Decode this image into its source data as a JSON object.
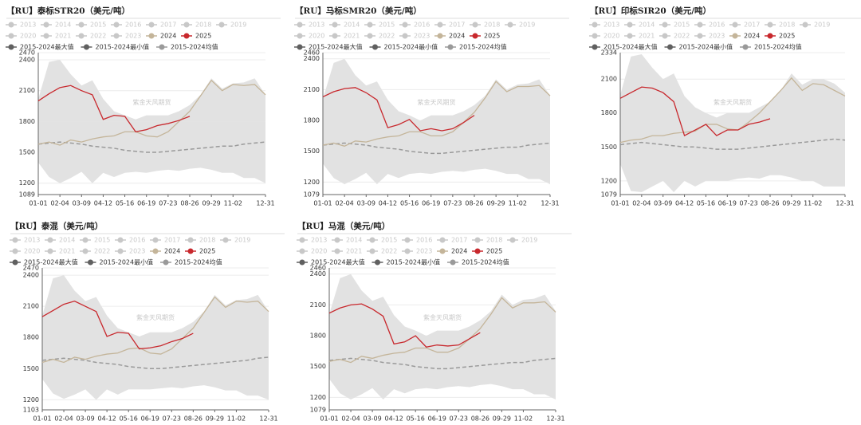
{
  "chart_data": [
    {
      "type": "line",
      "title": "【RU】泰标STR20（美元/吨）",
      "watermark": "紫金天风期货",
      "categories": [
        "01-01",
        null,
        "02-04",
        null,
        "03-09",
        null,
        "04-12",
        null,
        "05-16",
        null,
        "06-19",
        null,
        "07-23",
        null,
        "08-26",
        null,
        "09-29",
        null,
        "11-02",
        null,
        null,
        "12-31"
      ],
      "ylim": [
        1089,
        2470
      ],
      "yticks": [
        1089,
        1200,
        1500,
        1800,
        2100,
        2400,
        2470
      ],
      "hidden_series": [
        "2013",
        "2014",
        "2015",
        "2016",
        "2017",
        "2018",
        "2019",
        "2020",
        "2021",
        "2022",
        "2023"
      ],
      "hidden_color": "#c8c8c8",
      "band_color": "#e2e2e2",
      "series": [
        {
          "name": "2024",
          "color": "#c4b59a",
          "style": "solid",
          "values": [
            1580,
            1600,
            1570,
            1620,
            1600,
            1630,
            1650,
            1660,
            1700,
            1700,
            1660,
            1650,
            1700,
            1800,
            1900,
            2050,
            2200,
            2100,
            2160,
            2150,
            2160,
            2060
          ]
        },
        {
          "name": "2025",
          "color": "#c8282d",
          "style": "solid",
          "values": [
            2000,
            2070,
            2130,
            2150,
            2100,
            2060,
            1820,
            1860,
            1850,
            1700,
            1720,
            1760,
            1780,
            1810,
            1850,
            null,
            null,
            null,
            null,
            null,
            null,
            null
          ]
        },
        {
          "name": "2015-2024最大值",
          "color": "#606060",
          "style": "band-top",
          "values": [
            2020,
            2380,
            2400,
            2260,
            2150,
            2200,
            2020,
            1900,
            1860,
            1820,
            1860,
            1860,
            1860,
            1900,
            1960,
            2060,
            2220,
            2120,
            2170,
            2180,
            2220,
            2060
          ]
        },
        {
          "name": "2015-2024最小值",
          "color": "#606060",
          "style": "band-bottom",
          "values": [
            1400,
            1260,
            1200,
            1250,
            1310,
            1200,
            1300,
            1260,
            1300,
            1310,
            1300,
            1320,
            1330,
            1320,
            1340,
            1350,
            1330,
            1300,
            1300,
            1250,
            1250,
            1200
          ]
        },
        {
          "name": "2015-2024均值",
          "color": "#9a9a9a",
          "style": "dashed",
          "values": [
            1580,
            1590,
            1600,
            1590,
            1580,
            1560,
            1550,
            1540,
            1520,
            1510,
            1500,
            1500,
            1510,
            1520,
            1530,
            1540,
            1550,
            1560,
            1560,
            1580,
            1590,
            1600
          ]
        }
      ]
    },
    {
      "type": "line",
      "title": "【RU】马标SMR20（美元/吨）",
      "watermark": "紫金天风期货",
      "categories": [
        "01-01",
        null,
        "02-04",
        null,
        "03-09",
        null,
        "04-12",
        null,
        "05-16",
        null,
        "06-19",
        null,
        "07-23",
        null,
        "08-26",
        null,
        "09-29",
        null,
        "11-02",
        null,
        null,
        "12-31"
      ],
      "ylim": [
        1079,
        2460
      ],
      "yticks": [
        1079,
        1200,
        1500,
        1800,
        2100,
        2400,
        2460
      ],
      "hidden_series": [
        "2013",
        "2014",
        "2015",
        "2016",
        "2017",
        "2018",
        "2019",
        "2020",
        "2021",
        "2022",
        "2023"
      ],
      "hidden_color": "#c8c8c8",
      "band_color": "#e2e2e2",
      "series": [
        {
          "name": "2024",
          "color": "#c4b59a",
          "style": "solid",
          "values": [
            1560,
            1580,
            1550,
            1600,
            1590,
            1620,
            1640,
            1650,
            1690,
            1690,
            1650,
            1650,
            1690,
            1780,
            1880,
            2020,
            2180,
            2080,
            2130,
            2130,
            2140,
            2040
          ]
        },
        {
          "name": "2025",
          "color": "#c8282d",
          "style": "solid",
          "values": [
            2030,
            2080,
            2110,
            2120,
            2070,
            2000,
            1730,
            1760,
            1810,
            1700,
            1720,
            1700,
            1720,
            1780,
            1850,
            null,
            null,
            null,
            null,
            null,
            null,
            null
          ]
        },
        {
          "name": "2015-2024最大值",
          "color": "#606060",
          "style": "band-top",
          "values": [
            2010,
            2360,
            2400,
            2240,
            2140,
            2180,
            2000,
            1890,
            1850,
            1800,
            1850,
            1850,
            1850,
            1890,
            1950,
            2040,
            2200,
            2100,
            2150,
            2160,
            2200,
            2040
          ]
        },
        {
          "name": "2015-2024最小值",
          "color": "#606060",
          "style": "band-bottom",
          "values": [
            1380,
            1240,
            1180,
            1230,
            1290,
            1180,
            1280,
            1240,
            1280,
            1290,
            1280,
            1300,
            1310,
            1300,
            1320,
            1330,
            1310,
            1280,
            1280,
            1230,
            1230,
            1180
          ]
        },
        {
          "name": "2015-2024均值",
          "color": "#9a9a9a",
          "style": "dashed",
          "values": [
            1560,
            1570,
            1580,
            1570,
            1560,
            1540,
            1530,
            1520,
            1500,
            1490,
            1480,
            1480,
            1490,
            1500,
            1510,
            1520,
            1530,
            1540,
            1540,
            1560,
            1570,
            1580
          ]
        }
      ]
    },
    {
      "type": "line",
      "title": "【RU】印标SIR20（美元/吨）",
      "watermark": "紫金天风期货",
      "categories": [
        "01-01",
        null,
        "02-04",
        null,
        "03-09",
        null,
        "04-12",
        null,
        "05-16",
        null,
        "06-19",
        null,
        "07-23",
        null,
        "08-26",
        null,
        "09-29",
        null,
        "11-02",
        null,
        null,
        "12-31"
      ],
      "ylim": [
        1079,
        2334
      ],
      "yticks": [
        1079,
        1200,
        1500,
        1800,
        2100,
        2334
      ],
      "hidden_series": [
        "2013",
        "2014",
        "2015",
        "2016",
        "2017",
        "2018",
        "2019",
        "2020",
        "2021",
        "2022",
        "2023"
      ],
      "hidden_color": "#c8c8c8",
      "band_color": "#e2e2e2",
      "series": [
        {
          "name": "2024",
          "color": "#c4b59a",
          "style": "solid",
          "values": [
            1540,
            1560,
            1570,
            1600,
            1600,
            1620,
            1630,
            1640,
            1700,
            1700,
            1660,
            1650,
            1720,
            1800,
            1900,
            2000,
            2110,
            2000,
            2060,
            2050,
            2000,
            1950
          ]
        },
        {
          "name": "2025",
          "color": "#c8282d",
          "style": "solid",
          "values": [
            1930,
            1980,
            2030,
            2020,
            1980,
            1900,
            1600,
            1650,
            1700,
            1600,
            1650,
            1650,
            1700,
            1720,
            1750,
            null,
            null,
            null,
            null,
            null,
            null,
            null
          ]
        },
        {
          "name": "2015-2024最大值",
          "color": "#606060",
          "style": "band-top",
          "values": [
            1960,
            2300,
            2320,
            2200,
            2100,
            2150,
            1950,
            1850,
            1800,
            1760,
            1800,
            1800,
            1800,
            1850,
            1900,
            2000,
            2150,
            2050,
            2100,
            2100,
            2060,
            1980
          ]
        },
        {
          "name": "2015-2024最小值",
          "color": "#606060",
          "style": "band-bottom",
          "values": [
            1350,
            1110,
            1100,
            1150,
            1200,
            1100,
            1200,
            1150,
            1200,
            1200,
            1200,
            1220,
            1230,
            1220,
            1250,
            1250,
            1230,
            1200,
            1200,
            1150,
            1150,
            1150
          ]
        },
        {
          "name": "2015-2024均值",
          "color": "#9a9a9a",
          "style": "dashed",
          "values": [
            1520,
            1530,
            1540,
            1530,
            1520,
            1510,
            1500,
            1500,
            1490,
            1480,
            1480,
            1480,
            1490,
            1500,
            1510,
            1520,
            1530,
            1540,
            1550,
            1560,
            1570,
            1560
          ]
        }
      ]
    },
    {
      "type": "line",
      "title": "【RU】泰混（美元/吨）",
      "watermark": "紫金天风期货",
      "categories": [
        "01-01",
        null,
        "02-04",
        null,
        "03-09",
        null,
        "04-12",
        null,
        "05-16",
        null,
        "06-19",
        null,
        "07-23",
        null,
        "08-26",
        null,
        "09-29",
        null,
        "11-02",
        null,
        null,
        "12-31"
      ],
      "ylim": [
        1103,
        2470
      ],
      "yticks": [
        1103,
        1200,
        1500,
        1800,
        2100,
        2400,
        2470
      ],
      "hidden_series": [
        "2013",
        "2014",
        "2015",
        "2016",
        "2017",
        "2018",
        "2019",
        "2020",
        "2021",
        "2022",
        "2023"
      ],
      "hidden_color": "#c8c8c8",
      "band_color": "#e2e2e2",
      "series": [
        {
          "name": "2024",
          "color": "#c4b59a",
          "style": "solid",
          "values": [
            1560,
            1590,
            1560,
            1610,
            1590,
            1620,
            1640,
            1650,
            1690,
            1700,
            1650,
            1640,
            1690,
            1790,
            1890,
            2040,
            2190,
            2090,
            2150,
            2140,
            2150,
            2050
          ]
        },
        {
          "name": "2025",
          "color": "#c8282d",
          "style": "solid",
          "values": [
            2000,
            2060,
            2120,
            2150,
            2100,
            2050,
            1810,
            1850,
            1840,
            1690,
            1700,
            1720,
            1760,
            1790,
            1840,
            null,
            null,
            null,
            null,
            null,
            null,
            null
          ]
        },
        {
          "name": "2015-2024最大值",
          "color": "#606060",
          "style": "band-top",
          "values": [
            2010,
            2370,
            2400,
            2250,
            2150,
            2190,
            2010,
            1890,
            1850,
            1810,
            1850,
            1850,
            1850,
            1890,
            1950,
            2050,
            2210,
            2110,
            2160,
            2170,
            2210,
            2050
          ]
        },
        {
          "name": "2015-2024最小值",
          "color": "#606060",
          "style": "band-bottom",
          "values": [
            1400,
            1260,
            1210,
            1250,
            1300,
            1200,
            1300,
            1250,
            1300,
            1300,
            1300,
            1310,
            1320,
            1310,
            1330,
            1340,
            1320,
            1290,
            1290,
            1240,
            1240,
            1200
          ]
        },
        {
          "name": "2015-2024均值",
          "color": "#9a9a9a",
          "style": "dashed",
          "values": [
            1580,
            1590,
            1600,
            1590,
            1580,
            1560,
            1550,
            1540,
            1520,
            1510,
            1500,
            1500,
            1510,
            1520,
            1530,
            1540,
            1550,
            1560,
            1570,
            1580,
            1600,
            1610
          ]
        }
      ]
    },
    {
      "type": "line",
      "title": "【RU】马混（美元/吨）",
      "watermark": "紫金天风期货",
      "categories": [
        "01-01",
        null,
        "02-04",
        null,
        "03-09",
        null,
        "04-12",
        null,
        "05-16",
        null,
        "06-19",
        null,
        "07-23",
        null,
        "08-26",
        null,
        "09-29",
        null,
        "11-02",
        null,
        null,
        "12-31"
      ],
      "ylim": [
        1079,
        2460
      ],
      "yticks": [
        1079,
        1200,
        1500,
        1800,
        2100,
        2400,
        2460
      ],
      "hidden_series": [
        "2013",
        "2014",
        "2015",
        "2016",
        "2017",
        "2018",
        "2019",
        "2020",
        "2021",
        "2022",
        "2023"
      ],
      "hidden_color": "#c8c8c8",
      "band_color": "#e2e2e2",
      "series": [
        {
          "name": "2024",
          "color": "#c4b59a",
          "style": "solid",
          "values": [
            1550,
            1570,
            1540,
            1600,
            1580,
            1610,
            1630,
            1640,
            1680,
            1680,
            1640,
            1640,
            1680,
            1770,
            1870,
            2010,
            2170,
            2070,
            2120,
            2120,
            2130,
            2030
          ]
        },
        {
          "name": "2025",
          "color": "#c8282d",
          "style": "solid",
          "values": [
            2020,
            2070,
            2100,
            2110,
            2060,
            1990,
            1720,
            1740,
            1800,
            1690,
            1710,
            1700,
            1710,
            1770,
            1830,
            null,
            null,
            null,
            null,
            null,
            null,
            null
          ]
        },
        {
          "name": "2015-2024最大值",
          "color": "#606060",
          "style": "band-top",
          "values": [
            2010,
            2360,
            2400,
            2240,
            2140,
            2180,
            2000,
            1890,
            1850,
            1800,
            1850,
            1850,
            1850,
            1890,
            1950,
            2040,
            2200,
            2100,
            2150,
            2160,
            2200,
            2040
          ]
        },
        {
          "name": "2015-2024最小值",
          "color": "#606060",
          "style": "band-bottom",
          "values": [
            1380,
            1240,
            1180,
            1230,
            1290,
            1180,
            1280,
            1240,
            1280,
            1290,
            1280,
            1300,
            1310,
            1300,
            1320,
            1330,
            1310,
            1280,
            1280,
            1230,
            1230,
            1180
          ]
        },
        {
          "name": "2015-2024均值",
          "color": "#9a9a9a",
          "style": "dashed",
          "values": [
            1560,
            1570,
            1580,
            1570,
            1560,
            1540,
            1530,
            1520,
            1500,
            1490,
            1480,
            1480,
            1490,
            1500,
            1510,
            1520,
            1530,
            1540,
            1540,
            1560,
            1570,
            1580
          ]
        }
      ]
    }
  ]
}
